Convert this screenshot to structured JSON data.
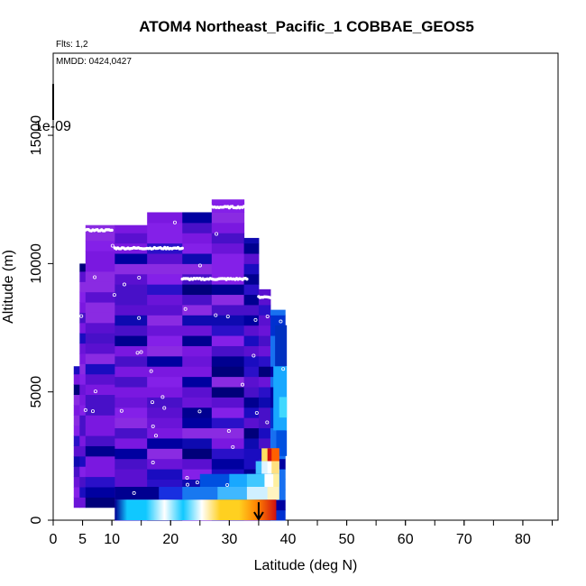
{
  "chart_data": {
    "type": "heatmap",
    "title": "ATOM4 Northeast_Pacific_1 COBBAE_GEOS5",
    "annotations": {
      "flights": "Flts: 1,2",
      "dates": "MMDD: 0424,0427",
      "scale_label": "1e-09"
    },
    "xlabel": "Latitude (deg N)",
    "ylabel": "Altitude (m)",
    "xlim": [
      0,
      86
    ],
    "ylim": [
      0,
      18200
    ],
    "x_ticks": [
      0,
      5,
      10,
      20,
      30,
      40,
      50,
      60,
      70,
      80
    ],
    "y_ticks": [
      0,
      5000,
      10000,
      15000
    ],
    "colors": {
      "background_low": "#8020ee",
      "mid_low": "#1010c0",
      "low": "#000090",
      "cyan": "#10c8ff",
      "white": "#ffffff",
      "yellow": "#ffd020",
      "orange": "#ff8000",
      "red": "#d01010"
    },
    "grid": false,
    "legend": "none",
    "arrow": {
      "latitude": 35,
      "altitude_from": 700,
      "altitude_to": 0
    },
    "colorbar_top": {
      "latitude": 0,
      "altitude_from": 17000,
      "altitude_to": 15600
    },
    "columns": [
      {
        "x0": 3.5,
        "x1": 4.5,
        "ybot": 500,
        "ytop": 6000,
        "pattern": "pp"
      },
      {
        "x0": 4.5,
        "x1": 5.5,
        "ybot": 500,
        "ytop": 10000,
        "pattern": "pp"
      },
      {
        "x0": 5.5,
        "x1": 10.5,
        "ybot": 500,
        "ytop": 11500,
        "pattern": "pp"
      },
      {
        "x0": 10.5,
        "x1": 16,
        "ybot": 0,
        "ytop": 11500,
        "pattern": "pp"
      },
      {
        "x0": 16,
        "x1": 22,
        "ybot": 0,
        "ytop": 12000,
        "pattern": "pp"
      },
      {
        "x0": 22,
        "x1": 27,
        "ybot": 0,
        "ytop": 12000,
        "pattern": "pp"
      },
      {
        "x0": 27,
        "x1": 32.5,
        "ybot": 0,
        "ytop": 12500,
        "pattern": "pp"
      },
      {
        "x0": 32.5,
        "x1": 35,
        "ybot": 0,
        "ytop": 11000,
        "pattern": "mix"
      },
      {
        "x0": 35,
        "x1": 37,
        "ybot": 0,
        "ytop": 9000,
        "pattern": "mix"
      },
      {
        "x0": 37,
        "x1": 39.5,
        "ybot": 0,
        "ytop": 8200,
        "pattern": "edge"
      }
    ],
    "surface_band": [
      {
        "x": 10,
        "value": "low"
      },
      {
        "x": 12,
        "value": "cyan"
      },
      {
        "x": 15,
        "value": "cyan"
      },
      {
        "x": 18,
        "value": "white"
      },
      {
        "x": 21,
        "value": "cyan"
      },
      {
        "x": 24,
        "value": "white"
      },
      {
        "x": 27,
        "value": "yellow"
      },
      {
        "x": 30,
        "value": "yellow"
      },
      {
        "x": 33,
        "value": "orange"
      },
      {
        "x": 36,
        "value": "red"
      }
    ],
    "flight_tracks": [
      {
        "lat_from": 5,
        "lat_to": 10,
        "alt": 11300
      },
      {
        "lat_from": 10.5,
        "lat_to": 22,
        "alt": 10600
      },
      {
        "lat_from": 22,
        "lat_to": 33,
        "alt": 9400
      },
      {
        "lat_from": 27,
        "lat_to": 32.5,
        "alt": 12200
      },
      {
        "lat_from": 35,
        "lat_to": 37,
        "alt": 8700
      }
    ]
  }
}
